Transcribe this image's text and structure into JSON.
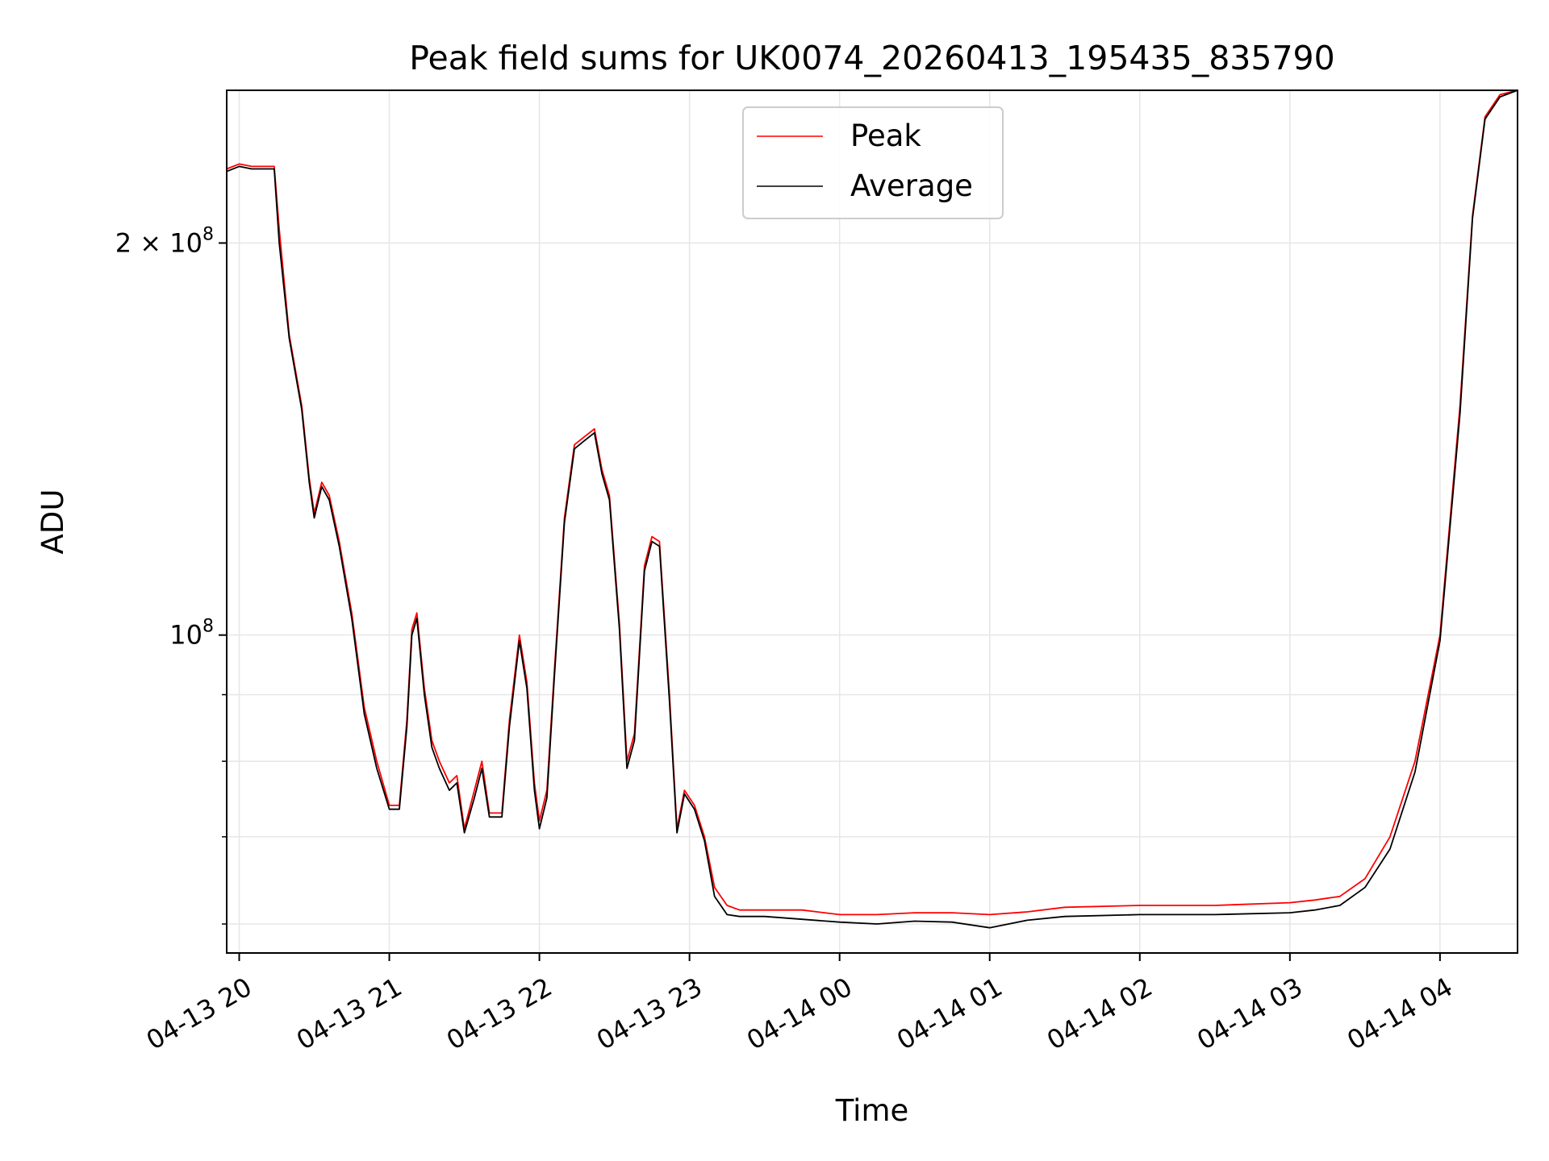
{
  "chart_data": {
    "type": "line",
    "title": "Peak field sums for UK0074_20260413_195435_835790",
    "xlabel": "Time",
    "ylabel": "ADU",
    "y_scale": "log",
    "ylim": [
      57000000,
      262000000
    ],
    "xlim": [
      "2026-04-13 19:55",
      "2026-04-14 04:31"
    ],
    "x_tick_labels": [
      "04-13 20",
      "04-13 21",
      "04-13 22",
      "04-13 23",
      "04-14 00",
      "04-14 01",
      "04-14 02",
      "04-14 03",
      "04-14 04"
    ],
    "x_ticks": [
      "2026-04-13 20:00",
      "2026-04-13 21:00",
      "2026-04-13 22:00",
      "2026-04-13 23:00",
      "2026-04-14 00:00",
      "2026-04-14 01:00",
      "2026-04-14 02:00",
      "2026-04-14 03:00",
      "2026-04-14 04:00"
    ],
    "y_major_ticks": [
      {
        "value": 100000000,
        "base": "10",
        "exp": "8"
      },
      {
        "value": 200000000,
        "base": "2 × 10",
        "exp": "8"
      }
    ],
    "y_minor_ticks": [
      60000000,
      70000000,
      80000000,
      90000000
    ],
    "grid": true,
    "legend_position": "top-center",
    "series": [
      {
        "name": "Peak",
        "color": "#ff0000",
        "x": [
          "2026-04-13 19:55",
          "2026-04-13 20:00",
          "2026-04-13 20:05",
          "2026-04-13 20:10",
          "2026-04-13 20:14",
          "2026-04-13 20:16",
          "2026-04-13 20:20",
          "2026-04-13 20:25",
          "2026-04-13 20:28",
          "2026-04-13 20:30",
          "2026-04-13 20:33",
          "2026-04-13 20:36",
          "2026-04-13 20:40",
          "2026-04-13 20:45",
          "2026-04-13 20:50",
          "2026-04-13 20:55",
          "2026-04-13 21:00",
          "2026-04-13 21:04",
          "2026-04-13 21:07",
          "2026-04-13 21:09",
          "2026-04-13 21:11",
          "2026-04-13 21:14",
          "2026-04-13 21:17",
          "2026-04-13 21:20",
          "2026-04-13 21:24",
          "2026-04-13 21:27",
          "2026-04-13 21:30",
          "2026-04-13 21:34",
          "2026-04-13 21:37",
          "2026-04-13 21:40",
          "2026-04-13 21:45",
          "2026-04-13 21:48",
          "2026-04-13 21:52",
          "2026-04-13 21:55",
          "2026-04-13 21:58",
          "2026-04-13 22:00",
          "2026-04-13 22:03",
          "2026-04-13 22:06",
          "2026-04-13 22:10",
          "2026-04-13 22:14",
          "2026-04-13 22:18",
          "2026-04-13 22:22",
          "2026-04-13 22:25",
          "2026-04-13 22:28",
          "2026-04-13 22:32",
          "2026-04-13 22:35",
          "2026-04-13 22:38",
          "2026-04-13 22:42",
          "2026-04-13 22:45",
          "2026-04-13 22:48",
          "2026-04-13 22:52",
          "2026-04-13 22:55",
          "2026-04-13 22:58",
          "2026-04-13 23:02",
          "2026-04-13 23:06",
          "2026-04-13 23:10",
          "2026-04-13 23:15",
          "2026-04-13 23:20",
          "2026-04-13 23:30",
          "2026-04-13 23:45",
          "2026-04-14 00:00",
          "2026-04-14 00:15",
          "2026-04-14 00:30",
          "2026-04-14 00:45",
          "2026-04-14 01:00",
          "2026-04-14 01:15",
          "2026-04-14 01:30",
          "2026-04-14 02:00",
          "2026-04-14 02:30",
          "2026-04-14 03:00",
          "2026-04-14 03:10",
          "2026-04-14 03:20",
          "2026-04-14 03:30",
          "2026-04-14 03:40",
          "2026-04-14 03:50",
          "2026-04-14 04:00",
          "2026-04-14 04:08",
          "2026-04-14 04:13",
          "2026-04-14 04:18",
          "2026-04-14 04:24",
          "2026-04-14 04:31"
        ],
        "y": [
          228000000,
          230000000,
          229000000,
          229000000,
          229000000,
          205000000,
          170000000,
          150000000,
          132000000,
          124000000,
          131000000,
          128000000,
          118000000,
          104000000,
          88000000,
          80000000,
          74000000,
          74000000,
          86000000,
          101000000,
          104000000,
          91000000,
          83000000,
          80000000,
          77000000,
          78000000,
          71000000,
          76000000,
          80000000,
          73000000,
          73000000,
          86000000,
          100000000,
          92000000,
          77000000,
          72000000,
          76000000,
          94000000,
          123000000,
          140000000,
          142000000,
          144000000,
          134000000,
          128000000,
          102000000,
          80000000,
          84000000,
          113000000,
          119000000,
          118000000,
          90000000,
          71000000,
          76000000,
          74000000,
          70000000,
          64000000,
          62000000,
          61500000,
          61500000,
          61500000,
          61000000,
          61000000,
          61200000,
          61200000,
          61000000,
          61300000,
          61800000,
          62000000,
          62000000,
          62300000,
          62600000,
          63000000,
          65000000,
          70000000,
          80000000,
          100000000,
          150000000,
          210000000,
          250000000,
          260000000,
          262000000
        ]
      },
      {
        "name": "Average",
        "color": "#000000",
        "x": [
          "2026-04-13 19:55",
          "2026-04-13 20:00",
          "2026-04-13 20:05",
          "2026-04-13 20:10",
          "2026-04-13 20:14",
          "2026-04-13 20:16",
          "2026-04-13 20:20",
          "2026-04-13 20:25",
          "2026-04-13 20:28",
          "2026-04-13 20:30",
          "2026-04-13 20:33",
          "2026-04-13 20:36",
          "2026-04-13 20:40",
          "2026-04-13 20:45",
          "2026-04-13 20:50",
          "2026-04-13 20:55",
          "2026-04-13 21:00",
          "2026-04-13 21:04",
          "2026-04-13 21:07",
          "2026-04-13 21:09",
          "2026-04-13 21:11",
          "2026-04-13 21:14",
          "2026-04-13 21:17",
          "2026-04-13 21:20",
          "2026-04-13 21:24",
          "2026-04-13 21:27",
          "2026-04-13 21:30",
          "2026-04-13 21:34",
          "2026-04-13 21:37",
          "2026-04-13 21:40",
          "2026-04-13 21:45",
          "2026-04-13 21:48",
          "2026-04-13 21:52",
          "2026-04-13 21:55",
          "2026-04-13 21:58",
          "2026-04-13 22:00",
          "2026-04-13 22:03",
          "2026-04-13 22:06",
          "2026-04-13 22:10",
          "2026-04-13 22:14",
          "2026-04-13 22:18",
          "2026-04-13 22:22",
          "2026-04-13 22:25",
          "2026-04-13 22:28",
          "2026-04-13 22:32",
          "2026-04-13 22:35",
          "2026-04-13 22:38",
          "2026-04-13 22:42",
          "2026-04-13 22:45",
          "2026-04-13 22:48",
          "2026-04-13 22:52",
          "2026-04-13 22:55",
          "2026-04-13 22:58",
          "2026-04-13 23:02",
          "2026-04-13 23:06",
          "2026-04-13 23:10",
          "2026-04-13 23:15",
          "2026-04-13 23:20",
          "2026-04-13 23:30",
          "2026-04-13 23:45",
          "2026-04-14 00:00",
          "2026-04-14 00:15",
          "2026-04-14 00:30",
          "2026-04-14 00:45",
          "2026-04-14 01:00",
          "2026-04-14 01:15",
          "2026-04-14 01:30",
          "2026-04-14 02:00",
          "2026-04-14 02:30",
          "2026-04-14 03:00",
          "2026-04-14 03:10",
          "2026-04-14 03:20",
          "2026-04-14 03:30",
          "2026-04-14 03:40",
          "2026-04-14 03:50",
          "2026-04-14 04:00",
          "2026-04-14 04:08",
          "2026-04-14 04:13",
          "2026-04-14 04:18",
          "2026-04-14 04:24",
          "2026-04-14 04:31"
        ],
        "y": [
          227000000,
          229000000,
          228000000,
          228000000,
          228000000,
          200000000,
          169000000,
          149000000,
          131000000,
          123000000,
          130000000,
          127000000,
          117000000,
          103000000,
          87000000,
          79000000,
          73500000,
          73500000,
          85000000,
          100000000,
          103000000,
          90000000,
          82000000,
          79000000,
          76000000,
          77000000,
          70500000,
          75000000,
          79000000,
          72500000,
          72500000,
          85000000,
          99000000,
          91000000,
          76000000,
          71000000,
          75000000,
          93000000,
          122000000,
          139000000,
          141000000,
          143000000,
          133000000,
          127000000,
          101000000,
          79000000,
          83000000,
          112000000,
          118000000,
          117000000,
          89000000,
          70500000,
          75500000,
          73500000,
          69500000,
          63000000,
          61000000,
          60800000,
          60800000,
          60500000,
          60200000,
          60000000,
          60300000,
          60200000,
          59600000,
          60400000,
          60800000,
          61000000,
          61000000,
          61200000,
          61500000,
          62000000,
          64000000,
          68500000,
          78500000,
          99000000,
          148000000,
          209000000,
          249000000,
          259000000,
          262000000
        ]
      }
    ]
  }
}
